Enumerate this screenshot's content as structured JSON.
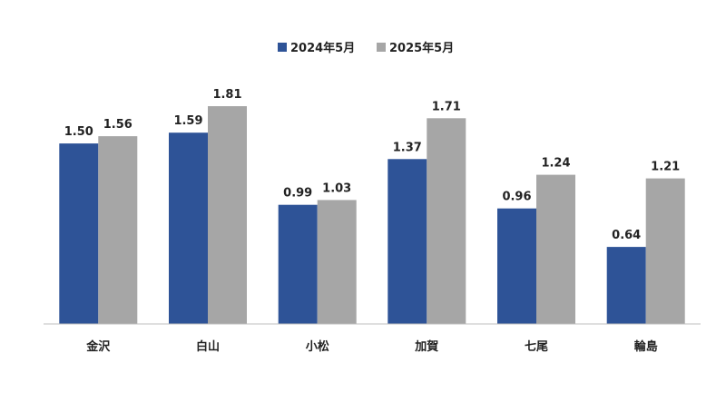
{
  "chart_data": {
    "type": "bar",
    "categories": [
      "金沢",
      "白山",
      "小松",
      "加賀",
      "七尾",
      "輪島"
    ],
    "series": [
      {
        "name": "2024年5月",
        "values": [
          1.5,
          1.59,
          0.99,
          1.37,
          0.96,
          0.64
        ],
        "color": "#2e5397"
      },
      {
        "name": "2025年5月",
        "values": [
          1.56,
          1.81,
          1.03,
          1.71,
          1.24,
          1.21
        ],
        "color": "#a6a6a6"
      }
    ],
    "data_labels": [
      [
        "1.50",
        "1.59",
        "0.99",
        "1.37",
        "0.96",
        "0.64"
      ],
      [
        "1.56",
        "1.81",
        "1.03",
        "1.71",
        "1.24",
        "1.21"
      ]
    ],
    "ylim": [
      0,
      1.81
    ],
    "legend": "top-center",
    "grid": false
  }
}
